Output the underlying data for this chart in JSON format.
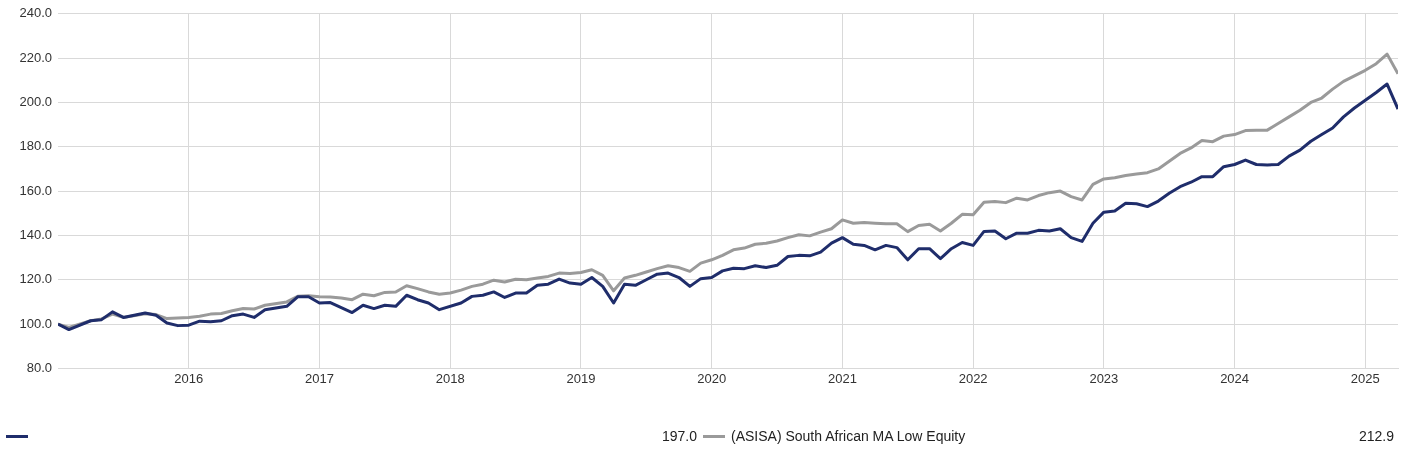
{
  "chart_data": {
    "type": "line",
    "xlim": [
      "2015-01",
      "2025-04"
    ],
    "xticks": [
      {
        "value": "2016",
        "label": "2016"
      },
      {
        "value": "2017",
        "label": "2017"
      },
      {
        "value": "2018",
        "label": "2018"
      },
      {
        "value": "2019",
        "label": "2019"
      },
      {
        "value": "2020",
        "label": "2020"
      },
      {
        "value": "2021",
        "label": "2021"
      },
      {
        "value": "2022",
        "label": "2022"
      },
      {
        "value": "2023",
        "label": "2023"
      },
      {
        "value": "2024",
        "label": "2024"
      },
      {
        "value": "2025",
        "label": "2025"
      }
    ],
    "ylim": [
      80,
      240
    ],
    "yticks": [
      {
        "value": 80,
        "label": "80.0"
      },
      {
        "value": 100,
        "label": "100.0"
      },
      {
        "value": 120,
        "label": "120.0"
      },
      {
        "value": 140,
        "label": "140.0"
      },
      {
        "value": 160,
        "label": "160.0"
      },
      {
        "value": 180,
        "label": "180.0"
      },
      {
        "value": 200,
        "label": "200.0"
      },
      {
        "value": 220,
        "label": "220.0"
      },
      {
        "value": 240,
        "label": "240.0"
      }
    ],
    "grid": true,
    "legend": "bottom",
    "marker": "none",
    "line_style": "solid",
    "annotations": [
      "197.0",
      "212.9"
    ],
    "series": [
      {
        "color": "#1f2d6b",
        "x": [
          "2015-01",
          "2015-02",
          "2015-04",
          "2015-05",
          "2015-06",
          "2015-07",
          "2015-09",
          "2015-10",
          "2015-11",
          "2015-12",
          "2016-01",
          "2016-02",
          "2016-03",
          "2016-04",
          "2016-05",
          "2016-06",
          "2016-07",
          "2016-08",
          "2016-10",
          "2016-11",
          "2016-12",
          "2017-01",
          "2017-02",
          "2017-04",
          "2017-05",
          "2017-06",
          "2017-07",
          "2017-08",
          "2017-09",
          "2017-10",
          "2017-11",
          "2017-12",
          "2018-02",
          "2018-03",
          "2018-04",
          "2018-05",
          "2018-06",
          "2018-07",
          "2018-08",
          "2018-09",
          "2018-10",
          "2018-11",
          "2018-12",
          "2019-01",
          "2019-02",
          "2019-03",
          "2019-04",
          "2019-05",
          "2019-06",
          "2019-07",
          "2019-08",
          "2019-09",
          "2019-10",
          "2019-11",
          "2019-12",
          "2020-01",
          "2020-02",
          "2020-03",
          "2020-04",
          "2020-05",
          "2020-06",
          "2020-07",
          "2020-08",
          "2020-09",
          "2020-10",
          "2020-11",
          "2020-12",
          "2021-01",
          "2021-02",
          "2021-03",
          "2021-04",
          "2021-05",
          "2021-06",
          "2021-07",
          "2021-08",
          "2021-09",
          "2021-10",
          "2021-11",
          "2021-12",
          "2022-01",
          "2022-02",
          "2022-03",
          "2022-04",
          "2022-05",
          "2022-06",
          "2022-07",
          "2022-08",
          "2022-09",
          "2022-10",
          "2022-11",
          "2022-12",
          "2023-01",
          "2023-02",
          "2023-03",
          "2023-04",
          "2023-05",
          "2023-06",
          "2023-07",
          "2023-08",
          "2023-09",
          "2023-10",
          "2023-11",
          "2023-12",
          "2024-01",
          "2024-02",
          "2024-03",
          "2024-04",
          "2024-05",
          "2024-06",
          "2024-07",
          "2024-08",
          "2024-09",
          "2024-10",
          "2024-11",
          "2024-12",
          "2025-01",
          "2025-02",
          "2025-03",
          "2025-04"
        ],
        "values": [
          100,
          97.5,
          101.5,
          102,
          105.5,
          103,
          105,
          104,
          100.5,
          99.3,
          99.5,
          101.3,
          101,
          101.5,
          103.8,
          104.5,
          103,
          106.5,
          108,
          112.3,
          112.3,
          109.5,
          109.7,
          105.2,
          108.5,
          107,
          108.5,
          108,
          113,
          111,
          109.5,
          106.5,
          109.5,
          112.5,
          113,
          114.5,
          112,
          114,
          114,
          117.5,
          118,
          120.3,
          118.5,
          118,
          121,
          117,
          109.5,
          118,
          117.5,
          120,
          122.5,
          123,
          121,
          117,
          120.5,
          121,
          124,
          125.2,
          125,
          126.3,
          125.5,
          126.5,
          130.5,
          131,
          130.8,
          132.5,
          136.5,
          139,
          136,
          135.5,
          133.5,
          135.5,
          134.5,
          129,
          134,
          134,
          129.5,
          134,
          136.8,
          135.5,
          141.8,
          142,
          138.5,
          141,
          141,
          142.3,
          142,
          143,
          139,
          137.3,
          145.5,
          150.5,
          151,
          154.5,
          154.3,
          153,
          155.5,
          159,
          162,
          164,
          166.5,
          166.5,
          171,
          172,
          174,
          172,
          171.8,
          172,
          175.8,
          178.5,
          182.5,
          185.5,
          188.5,
          193.5,
          197.5,
          201,
          204.5,
          208.3,
          197
        ]
      },
      {
        "name": "(ASISA) South African MA Low Equity",
        "color": "#9a9a9a",
        "x": [
          "2015-01",
          "2015-02",
          "2015-04",
          "2015-05",
          "2015-06",
          "2015-07",
          "2015-09",
          "2015-10",
          "2015-11",
          "2015-12",
          "2016-01",
          "2016-02",
          "2016-03",
          "2016-04",
          "2016-05",
          "2016-06",
          "2016-07",
          "2016-08",
          "2016-10",
          "2016-11",
          "2016-12",
          "2017-01",
          "2017-02",
          "2017-03",
          "2017-04",
          "2017-05",
          "2017-06",
          "2017-07",
          "2017-08",
          "2017-09",
          "2017-10",
          "2017-11",
          "2017-12",
          "2018-01",
          "2018-02",
          "2018-03",
          "2018-04",
          "2018-05",
          "2018-06",
          "2018-07",
          "2018-08",
          "2018-09",
          "2018-10",
          "2018-11",
          "2018-12",
          "2019-01",
          "2019-02",
          "2019-03",
          "2019-04",
          "2019-05",
          "2019-06",
          "2019-07",
          "2019-08",
          "2019-09",
          "2019-10",
          "2019-11",
          "2019-12",
          "2020-01",
          "2020-02",
          "2020-03",
          "2020-04",
          "2020-05",
          "2020-06",
          "2020-07",
          "2020-08",
          "2020-09",
          "2020-10",
          "2020-11",
          "2020-12",
          "2021-01",
          "2021-02",
          "2021-03",
          "2021-04",
          "2021-05",
          "2021-06",
          "2021-07",
          "2021-08",
          "2021-09",
          "2021-10",
          "2021-11",
          "2021-12",
          "2022-01",
          "2022-02",
          "2022-03",
          "2022-04",
          "2022-05",
          "2022-06",
          "2022-07",
          "2022-08",
          "2022-09",
          "2022-10",
          "2022-11",
          "2022-12",
          "2023-01",
          "2023-02",
          "2023-03",
          "2023-04",
          "2023-05",
          "2023-06",
          "2023-07",
          "2023-08",
          "2023-09",
          "2023-10",
          "2023-11",
          "2023-12",
          "2024-01",
          "2024-02",
          "2024-03",
          "2024-04",
          "2024-05",
          "2024-06",
          "2024-07",
          "2024-08",
          "2024-09",
          "2024-10",
          "2024-11",
          "2024-12",
          "2025-01",
          "2025-02",
          "2025-03",
          "2025-04"
        ],
        "values": [
          100,
          98.5,
          101.5,
          102.3,
          104.5,
          103,
          104.7,
          104.3,
          102.5,
          102.7,
          103,
          103.5,
          104.5,
          104.8,
          106,
          107,
          106.8,
          108.5,
          110,
          112.5,
          112.8,
          112.3,
          112.2,
          111.8,
          111,
          113.5,
          112.8,
          114.3,
          114.5,
          117.3,
          116,
          114.5,
          113.5,
          114,
          115.3,
          117,
          118,
          119.8,
          119,
          120.2,
          120,
          120.8,
          121.5,
          123,
          122.8,
          123.3,
          124.5,
          122,
          115,
          120.8,
          122,
          123.5,
          125,
          126.3,
          125.5,
          123.8,
          127.5,
          129,
          131,
          133.5,
          134.3,
          136,
          136.5,
          137.5,
          139,
          140.3,
          139.8,
          141.5,
          143,
          147,
          145.5,
          145.8,
          145.5,
          145.3,
          145.3,
          141.7,
          144.5,
          145,
          142,
          145.5,
          149.5,
          149.3,
          155,
          155.3,
          154.8,
          156.8,
          156,
          158,
          159.3,
          160,
          157.5,
          156,
          163,
          165.5,
          166,
          167,
          167.7,
          168.3,
          170,
          173.5,
          177,
          179.5,
          182.8,
          182.3,
          184.8,
          185.5,
          187.3,
          187.5,
          187.5,
          190.5,
          193.5,
          196.5,
          200,
          202,
          206,
          209.5,
          212,
          214.5,
          217.5,
          221.8,
          212.9
        ]
      }
    ]
  }
}
